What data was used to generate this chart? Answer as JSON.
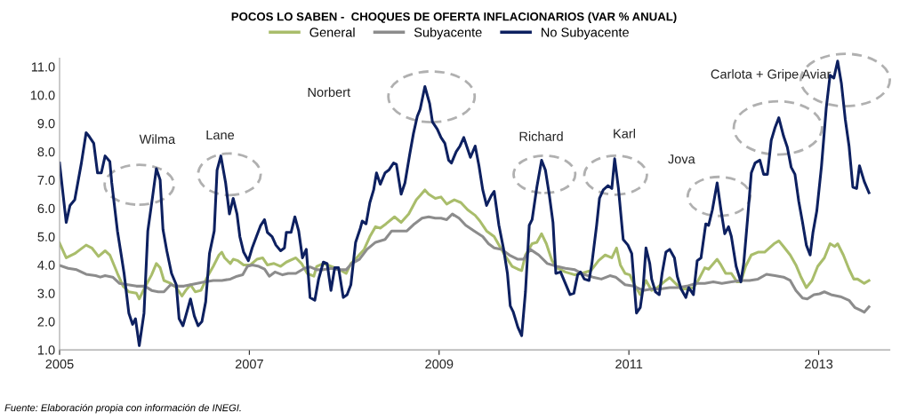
{
  "chart_data": {
    "type": "line",
    "title": "POCOS LO SABEN -  CHOQUES DE OFERTA INFLACIONARIOS (VAR % ANUAL)",
    "xlim": [
      2005,
      2013.75
    ],
    "xticks": [
      2005,
      2007,
      2009,
      2011,
      2013
    ],
    "ylim": [
      1.0,
      11.3
    ],
    "yticks": [
      {
        "value": 1,
        "label": "1.0"
      },
      {
        "value": 2,
        "label": "2.0"
      },
      {
        "value": 3,
        "label": "3.0"
      },
      {
        "value": 4,
        "label": "4.0"
      },
      {
        "value": 5,
        "label": "5.0"
      },
      {
        "value": 6,
        "label": "6.0"
      },
      {
        "value": 7,
        "label": "7.0"
      },
      {
        "value": 8,
        "label": "8.0"
      },
      {
        "value": 9,
        "label": "9.0"
      },
      {
        "value": 10,
        "label": "10.0"
      },
      {
        "value": 11,
        "label": "11.0"
      }
    ],
    "grid": false,
    "legend": "top",
    "marker": "none",
    "line_style": "solid",
    "annotations": [
      "Wilma",
      "Lane",
      "Norbert",
      "Richard",
      "Karl",
      "Jova",
      "Carlota + Gripe Aviar",
      "Fuente: Elaboración propia con información de INEGI."
    ],
    "series": [
      {
        "name": "General",
        "color": "#a9bd6b",
        "x": [
          2005.0,
          2005.07,
          2005.16,
          2005.22,
          2005.28,
          2005.34,
          2005.41,
          2005.48,
          2005.53,
          2005.61,
          2005.67,
          2005.73,
          2005.81,
          2005.84,
          2005.89,
          2005.97,
          2006.02,
          2006.06,
          2006.1,
          2006.17,
          2006.23,
          2006.29,
          2006.33,
          2006.38,
          2006.43,
          2006.49,
          2006.56,
          2006.62,
          2006.68,
          2006.71,
          2006.74,
          2006.8,
          2006.83,
          2006.88,
          2006.94,
          2007.01,
          2007.08,
          2007.14,
          2007.19,
          2007.26,
          2007.33,
          2007.39,
          2007.49,
          2007.55,
          2007.61,
          2007.68,
          2007.71,
          2007.78,
          2007.86,
          2007.94,
          2008.02,
          2008.07,
          2008.13,
          2008.21,
          2008.27,
          2008.33,
          2008.38,
          2008.44,
          2008.53,
          2008.6,
          2008.68,
          2008.76,
          2008.8,
          2008.85,
          2008.89,
          2008.96,
          2009.02,
          2009.08,
          2009.16,
          2009.23,
          2009.3,
          2009.38,
          2009.43,
          2009.5,
          2009.58,
          2009.64,
          2009.71,
          2009.77,
          2009.83,
          2009.87,
          2009.91,
          2009.98,
          2010.03,
          2010.08,
          2010.13,
          2010.19,
          2010.24,
          2010.33,
          2010.43,
          2010.5,
          2010.6,
          2010.68,
          2010.75,
          2010.82,
          2010.87,
          2010.91,
          2010.96,
          2011.01,
          2011.05,
          2011.12,
          2011.18,
          2011.24,
          2011.3,
          2011.37,
          2011.43,
          2011.49,
          2011.55,
          2011.61,
          2011.68,
          2011.73,
          2011.8,
          2011.84,
          2011.93,
          2011.97,
          2012.02,
          2012.08,
          2012.14,
          2012.18,
          2012.23,
          2012.29,
          2012.36,
          2012.43,
          2012.48,
          2012.53,
          2012.58,
          2012.63,
          2012.7,
          2012.76,
          2012.81,
          2012.87,
          2012.93,
          2012.99,
          2013.06,
          2013.12,
          2013.17,
          2013.2,
          2013.26,
          2013.32,
          2013.37,
          2013.41,
          2013.48,
          2013.53
        ],
        "values": [
          4.77,
          4.25,
          4.4,
          4.55,
          4.7,
          4.6,
          4.3,
          4.5,
          4.35,
          3.7,
          3.25,
          3.05,
          3.0,
          2.8,
          3.15,
          3.65,
          4.05,
          3.9,
          3.45,
          3.35,
          3.2,
          2.9,
          3.1,
          3.3,
          3.05,
          3.1,
          3.6,
          3.95,
          4.35,
          4.45,
          4.25,
          4.05,
          4.2,
          4.15,
          4.0,
          4.0,
          4.2,
          4.25,
          4.0,
          4.05,
          3.95,
          4.1,
          4.25,
          4.05,
          3.7,
          3.6,
          3.95,
          4.05,
          3.95,
          3.85,
          3.7,
          4.05,
          4.25,
          4.55,
          5.0,
          5.35,
          5.3,
          5.45,
          5.7,
          5.5,
          5.8,
          6.3,
          6.45,
          6.65,
          6.5,
          6.35,
          6.4,
          6.15,
          6.3,
          6.2,
          5.95,
          5.75,
          5.55,
          5.2,
          5.0,
          4.65,
          4.25,
          3.95,
          3.85,
          3.8,
          4.35,
          4.75,
          4.8,
          5.1,
          4.75,
          4.15,
          3.9,
          3.75,
          3.65,
          3.7,
          3.8,
          4.15,
          4.35,
          4.25,
          4.6,
          4.0,
          3.7,
          3.65,
          3.35,
          2.95,
          3.45,
          3.1,
          3.2,
          3.4,
          3.55,
          3.35,
          3.15,
          3.15,
          3.2,
          3.45,
          3.9,
          3.85,
          4.2,
          4.0,
          3.7,
          3.7,
          3.4,
          3.4,
          3.95,
          4.35,
          4.45,
          4.45,
          4.6,
          4.75,
          4.85,
          4.65,
          4.35,
          4.0,
          3.6,
          3.2,
          3.45,
          3.95,
          4.25,
          4.75,
          4.65,
          4.75,
          4.35,
          3.85,
          3.5,
          3.5,
          3.35,
          3.45
        ]
      },
      {
        "name": "Subyacente",
        "color": "#8c8c8c",
        "x": [
          2005.0,
          2005.09,
          2005.18,
          2005.28,
          2005.38,
          2005.43,
          2005.48,
          2005.56,
          2005.63,
          2005.72,
          2005.81,
          2005.9,
          2005.97,
          2006.04,
          2006.1,
          2006.17,
          2006.23,
          2006.31,
          2006.38,
          2006.45,
          2006.53,
          2006.62,
          2006.71,
          2006.8,
          2006.87,
          2006.93,
          2006.98,
          2007.03,
          2007.1,
          2007.16,
          2007.21,
          2007.27,
          2007.35,
          2007.41,
          2007.49,
          2007.58,
          2007.64,
          2007.71,
          2007.78,
          2007.86,
          2007.94,
          2008.02,
          2008.08,
          2008.16,
          2008.24,
          2008.33,
          2008.43,
          2008.5,
          2008.58,
          2008.66,
          2008.74,
          2008.82,
          2008.89,
          2008.96,
          2009.02,
          2009.08,
          2009.14,
          2009.21,
          2009.28,
          2009.37,
          2009.46,
          2009.52,
          2009.58,
          2009.66,
          2009.74,
          2009.83,
          2009.89,
          2009.96,
          2010.05,
          2010.14,
          2010.24,
          2010.33,
          2010.43,
          2010.52,
          2010.62,
          2010.71,
          2010.8,
          2010.86,
          2010.96,
          2011.05,
          2011.15,
          2011.24,
          2011.33,
          2011.43,
          2011.52,
          2011.61,
          2011.71,
          2011.8,
          2011.89,
          2011.98,
          2012.08,
          2012.18,
          2012.27,
          2012.36,
          2012.45,
          2012.54,
          2012.63,
          2012.7,
          2012.76,
          2012.83,
          2012.88,
          2012.95,
          2013.01,
          2013.06,
          2013.13,
          2013.23,
          2013.32,
          2013.38,
          2013.44,
          2013.48,
          2013.53
        ],
        "values": [
          3.98,
          3.88,
          3.83,
          3.67,
          3.62,
          3.57,
          3.62,
          3.57,
          3.35,
          3.3,
          3.25,
          3.25,
          3.1,
          3.05,
          3.05,
          3.3,
          3.25,
          3.25,
          3.3,
          3.35,
          3.4,
          3.45,
          3.45,
          3.5,
          3.6,
          3.65,
          3.95,
          4.0,
          3.95,
          3.85,
          3.6,
          3.75,
          3.65,
          3.7,
          3.7,
          3.88,
          3.93,
          3.83,
          3.83,
          3.88,
          3.83,
          3.83,
          4.05,
          4.2,
          4.55,
          4.8,
          4.9,
          5.2,
          5.2,
          5.2,
          5.45,
          5.65,
          5.7,
          5.65,
          5.65,
          5.6,
          5.8,
          5.65,
          5.4,
          5.2,
          5.0,
          4.75,
          4.6,
          4.55,
          4.35,
          4.2,
          4.2,
          4.55,
          4.35,
          4.05,
          3.95,
          3.88,
          3.83,
          3.67,
          3.57,
          3.5,
          3.62,
          3.57,
          3.3,
          3.25,
          3.1,
          3.15,
          3.15,
          3.2,
          3.2,
          3.25,
          3.35,
          3.35,
          3.4,
          3.35,
          3.4,
          3.45,
          3.45,
          3.5,
          3.67,
          3.62,
          3.57,
          3.45,
          3.1,
          2.83,
          2.8,
          2.95,
          2.98,
          3.05,
          2.95,
          2.88,
          2.75,
          2.5,
          2.4,
          2.33,
          2.52
        ]
      },
      {
        "name": "No Subyacente",
        "color": "#0d2060",
        "x": [
          2005.0,
          2005.07,
          2005.11,
          2005.16,
          2005.23,
          2005.28,
          2005.31,
          2005.36,
          2005.4,
          2005.44,
          2005.48,
          2005.53,
          2005.55,
          2005.61,
          2005.65,
          2005.68,
          2005.73,
          2005.77,
          2005.8,
          2005.84,
          2005.89,
          2005.93,
          2005.98,
          2006.02,
          2006.06,
          2006.09,
          2006.13,
          2006.18,
          2006.23,
          2006.26,
          2006.3,
          2006.33,
          2006.38,
          2006.42,
          2006.46,
          2006.5,
          2006.54,
          2006.58,
          2006.63,
          2006.66,
          2006.7,
          2006.75,
          2006.79,
          2006.83,
          2006.87,
          2006.9,
          2006.94,
          2006.99,
          2007.03,
          2007.08,
          2007.12,
          2007.16,
          2007.19,
          2007.24,
          2007.28,
          2007.33,
          2007.37,
          2007.39,
          2007.44,
          2007.48,
          2007.52,
          2007.56,
          2007.6,
          2007.64,
          2007.69,
          2007.73,
          2007.78,
          2007.82,
          2007.86,
          2007.9,
          2007.94,
          2007.99,
          2008.03,
          2008.07,
          2008.12,
          2008.17,
          2008.19,
          2008.23,
          2008.27,
          2008.31,
          2008.34,
          2008.38,
          2008.43,
          2008.47,
          2008.52,
          2008.55,
          2008.6,
          2008.64,
          2008.69,
          2008.73,
          2008.77,
          2008.8,
          2008.85,
          2008.9,
          2008.93,
          2008.98,
          2009.02,
          2009.06,
          2009.1,
          2009.13,
          2009.18,
          2009.22,
          2009.26,
          2009.29,
          2009.33,
          2009.38,
          2009.42,
          2009.46,
          2009.5,
          2009.55,
          2009.58,
          2009.63,
          2009.68,
          2009.72,
          2009.75,
          2009.78,
          2009.83,
          2009.87,
          2009.91,
          2009.95,
          2009.98,
          2010.03,
          2010.08,
          2010.12,
          2010.16,
          2010.2,
          2010.23,
          2010.28,
          2010.33,
          2010.38,
          2010.42,
          2010.46,
          2010.49,
          2010.53,
          2010.58,
          2010.61,
          2010.66,
          2010.69,
          2010.73,
          2010.78,
          2010.82,
          2010.85,
          2010.89,
          2010.94,
          2010.99,
          2011.03,
          2011.08,
          2011.12,
          2011.15,
          2011.18,
          2011.22,
          2011.24,
          2011.28,
          2011.32,
          2011.35,
          2011.39,
          2011.43,
          2011.48,
          2011.51,
          2011.55,
          2011.6,
          2011.63,
          2011.68,
          2011.72,
          2011.76,
          2011.81,
          2011.84,
          2011.88,
          2011.93,
          2011.97,
          2012.01,
          2012.05,
          2012.08,
          2012.13,
          2012.18,
          2012.21,
          2012.25,
          2012.29,
          2012.33,
          2012.38,
          2012.42,
          2012.46,
          2012.5,
          2012.54,
          2012.58,
          2012.63,
          2012.67,
          2012.71,
          2012.75,
          2012.79,
          2012.83,
          2012.87,
          2012.91,
          2012.94,
          2012.98,
          2013.03,
          2013.08,
          2013.12,
          2013.16,
          2013.2,
          2013.24,
          2013.28,
          2013.32,
          2013.36,
          2013.4,
          2013.43,
          2013.48,
          2013.53
        ],
        "values": [
          7.6,
          5.5,
          6.1,
          6.3,
          7.6,
          8.67,
          8.55,
          8.3,
          7.25,
          7.25,
          7.85,
          7.65,
          6.9,
          5.2,
          4.35,
          3.7,
          2.3,
          1.9,
          2.1,
          1.15,
          2.3,
          5.2,
          6.4,
          7.4,
          7.0,
          5.25,
          4.5,
          3.7,
          3.3,
          2.1,
          1.85,
          2.2,
          2.8,
          2.2,
          1.85,
          2.0,
          2.7,
          4.4,
          5.2,
          7.35,
          7.85,
          6.9,
          5.8,
          6.35,
          5.8,
          5.0,
          4.45,
          4.15,
          4.6,
          5.05,
          5.4,
          5.6,
          5.15,
          5.0,
          4.7,
          4.5,
          4.6,
          5.15,
          5.15,
          5.7,
          5.2,
          4.25,
          4.55,
          2.85,
          2.75,
          3.5,
          4.1,
          4.05,
          3.1,
          3.9,
          3.9,
          2.85,
          2.95,
          3.3,
          4.8,
          5.3,
          5.55,
          5.45,
          6.2,
          6.65,
          7.25,
          6.85,
          7.25,
          7.35,
          7.6,
          7.55,
          6.5,
          6.9,
          7.9,
          8.65,
          9.25,
          9.5,
          10.3,
          9.7,
          9.05,
          8.8,
          8.5,
          8.3,
          7.7,
          7.6,
          8.0,
          8.2,
          8.5,
          8.2,
          7.8,
          8.2,
          7.5,
          6.65,
          6.1,
          6.45,
          6.6,
          5.4,
          4.55,
          3.7,
          2.55,
          2.35,
          1.8,
          1.5,
          3.05,
          5.4,
          5.6,
          6.75,
          7.7,
          7.35,
          6.5,
          5.5,
          3.7,
          3.75,
          3.35,
          2.95,
          3.0,
          3.65,
          3.75,
          3.5,
          3.45,
          4.05,
          5.4,
          6.35,
          6.65,
          6.8,
          6.7,
          7.75,
          6.7,
          4.9,
          4.7,
          4.4,
          2.3,
          2.5,
          3.2,
          4.6,
          4.05,
          3.5,
          3.05,
          2.95,
          3.7,
          4.45,
          4.55,
          4.25,
          3.6,
          3.15,
          2.85,
          3.2,
          2.95,
          4.15,
          4.25,
          5.45,
          5.4,
          5.95,
          6.9,
          5.95,
          5.1,
          5.35,
          5.0,
          3.95,
          3.4,
          4.05,
          5.6,
          7.25,
          7.6,
          7.7,
          7.2,
          7.2,
          8.4,
          8.85,
          9.2,
          8.55,
          8.15,
          7.45,
          7.2,
          6.25,
          5.5,
          4.7,
          4.35,
          5.15,
          5.9,
          7.5,
          9.55,
          10.7,
          10.6,
          11.2,
          10.4,
          9.15,
          8.2,
          6.75,
          6.7,
          7.5,
          6.95,
          6.55
        ]
      }
    ]
  }
}
